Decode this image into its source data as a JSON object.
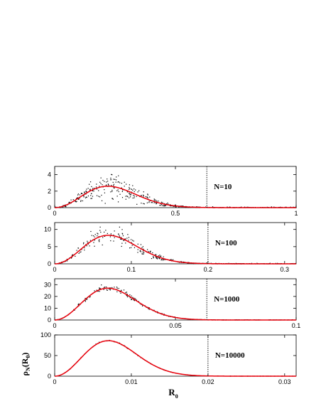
{
  "figure": {
    "xlabel": {
      "main": "R",
      "sub": "0"
    },
    "ylabel": {
      "main": "ρ",
      "sub": "N",
      "arg_open": "(R",
      "arg_sub": "0",
      "arg_close": ")"
    }
  },
  "chart_data": [
    {
      "type": "scatter",
      "panel_label": "N=10",
      "N": 10,
      "xlim": [
        0,
        1
      ],
      "ylim": [
        0,
        5
      ],
      "xticks": [
        0,
        0.5,
        1
      ],
      "xtick_labels": [
        "0",
        "0.5",
        "1"
      ],
      "yticks": [
        0,
        2,
        4
      ],
      "ytick_labels": [
        "0",
        "2",
        "4"
      ],
      "dotted_line_x": 0.63,
      "peak_x": 0.22,
      "peak_y": 2.6,
      "scatter_noise": 0.3,
      "points": 520,
      "curve_color": "#e8000b",
      "point_color": "#000000"
    },
    {
      "type": "scatter",
      "panel_label": "N=100",
      "N": 100,
      "xlim": [
        0,
        0.315
      ],
      "ylim": [
        0,
        12
      ],
      "xticks": [
        0,
        0.1,
        0.2,
        0.3
      ],
      "xtick_labels": [
        "0",
        "0.1",
        "0.2",
        "0.3"
      ],
      "yticks": [
        0,
        5,
        10
      ],
      "ytick_labels": [
        "0",
        "5",
        "10"
      ],
      "dotted_line_x": 0.2,
      "peak_x": 0.07,
      "peak_y": 8.3,
      "scatter_noise": 0.16,
      "points": 420,
      "curve_color": "#e8000b",
      "point_color": "#000000"
    },
    {
      "type": "scatter",
      "panel_label": "N=1000",
      "N": 1000,
      "xlim": [
        0,
        0.1
      ],
      "ylim": [
        0,
        35
      ],
      "xticks": [
        0,
        0.05,
        0.1
      ],
      "xtick_labels": [
        "0",
        "0.05",
        "0.1"
      ],
      "yticks": [
        0,
        10,
        20,
        30
      ],
      "ytick_labels": [
        "0",
        "10",
        "20",
        "30"
      ],
      "dotted_line_x": 0.063,
      "peak_x": 0.022,
      "peak_y": 27,
      "scatter_noise": 0.06,
      "points": 300,
      "curve_color": "#e8000b",
      "point_color": "#000000"
    },
    {
      "type": "scatter",
      "panel_label": "N=10000",
      "N": 10000,
      "xlim": [
        0,
        0.0315
      ],
      "ylim": [
        0,
        100
      ],
      "xticks": [
        0,
        0.01,
        0.02,
        0.03
      ],
      "xtick_labels": [
        "0",
        "0.01",
        "0.02",
        "0.03"
      ],
      "yticks": [
        0,
        50,
        100
      ],
      "ytick_labels": [
        "0",
        "50",
        "100"
      ],
      "dotted_line_x": 0.02,
      "peak_x": 0.007,
      "peak_y": 86,
      "scatter_noise": 0.01,
      "points": 130,
      "curve_color": "#e8000b",
      "point_color": "#000000"
    }
  ]
}
